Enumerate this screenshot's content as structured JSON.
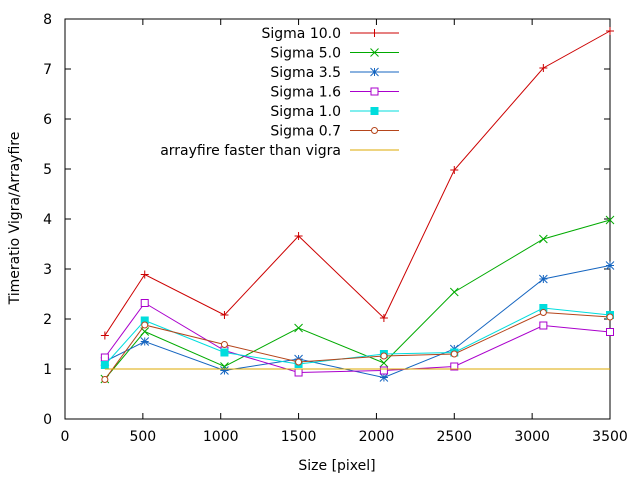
{
  "chart_data": {
    "type": "line",
    "title": "",
    "xlabel": "Size [pixel]",
    "ylabel": "Timeratio Vigra/Arrayfire",
    "xlim": [
      0,
      3500
    ],
    "ylim": [
      0,
      8
    ],
    "xticks": [
      0,
      500,
      1000,
      1500,
      2000,
      2500,
      3000,
      3500
    ],
    "yticks": [
      0,
      1,
      2,
      3,
      4,
      5,
      6,
      7,
      8
    ],
    "grid": false,
    "legend_position": "top-center",
    "x": [
      256,
      512,
      1024,
      1500,
      2048,
      2500,
      3072,
      3500
    ],
    "series": [
      {
        "name": "Sigma 10.0",
        "color": "#cc0000",
        "marker": "plus",
        "values": [
          1.67,
          2.89,
          2.08,
          3.66,
          2.02,
          4.98,
          7.02,
          7.76
        ]
      },
      {
        "name": "Sigma 5.0",
        "color": "#00aa00",
        "marker": "cross",
        "values": [
          0.8,
          1.75,
          1.05,
          1.82,
          1.12,
          2.54,
          3.6,
          3.98
        ]
      },
      {
        "name": "Sigma 3.5",
        "color": "#1565c0",
        "marker": "star",
        "values": [
          1.15,
          1.55,
          0.97,
          1.2,
          0.83,
          1.4,
          2.8,
          3.07
        ]
      },
      {
        "name": "Sigma 1.6",
        "color": "#aa00cc",
        "marker": "open-square",
        "values": [
          1.23,
          2.32,
          1.37,
          0.93,
          0.97,
          1.05,
          1.87,
          1.74
        ]
      },
      {
        "name": "Sigma 1.0",
        "color": "#00dddd",
        "marker": "filled-square",
        "values": [
          1.08,
          1.97,
          1.33,
          1.1,
          1.3,
          1.33,
          2.22,
          2.08
        ]
      },
      {
        "name": "Sigma 0.7",
        "color": "#b5451b",
        "marker": "open-circle",
        "values": [
          0.79,
          1.88,
          1.49,
          1.14,
          1.26,
          1.3,
          2.13,
          2.04
        ]
      },
      {
        "name": "arrayfire faster than vigra",
        "color": "#ddaa00",
        "marker": "none",
        "x": [
          256,
          3500
        ],
        "values": [
          1,
          1
        ]
      }
    ]
  }
}
